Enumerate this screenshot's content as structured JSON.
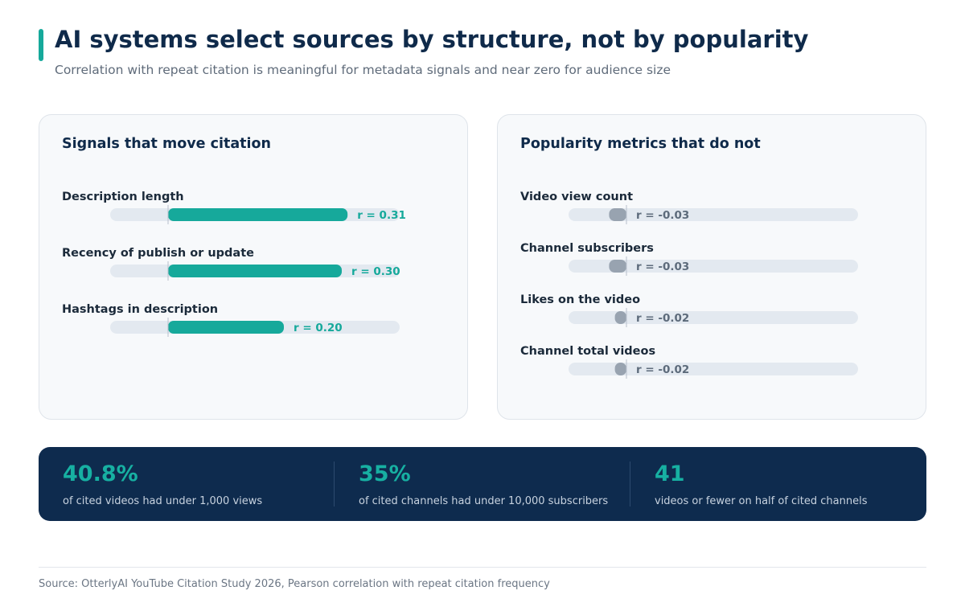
{
  "header": {
    "title": "AI systems select sources by structure, not by popularity",
    "subtitle": "Correlation with repeat citation is meaningful for metadata signals and near zero for audience size"
  },
  "colors": {
    "positive": "#16a99b",
    "negative": "#98a3b0",
    "track": "#e3e9f0",
    "navy": "#0e2b4e"
  },
  "chart_data": [
    {
      "type": "bar",
      "title": "Signals that move citation",
      "categories": [
        "Description length",
        "Recency of publish or update",
        "Hashtags in description"
      ],
      "values": [
        0.31,
        0.3,
        0.2
      ],
      "value_labels": [
        "r = 0.31",
        "r = 0.30",
        "r = 0.20"
      ],
      "xlim": [
        -0.1,
        0.4
      ],
      "orientation": "horizontal"
    },
    {
      "type": "bar",
      "title": "Popularity metrics that do not",
      "categories": [
        "Video view count",
        "Channel subscribers",
        "Likes on the video",
        "Channel total videos"
      ],
      "values": [
        -0.03,
        -0.03,
        -0.02,
        -0.02
      ],
      "value_labels": [
        "r = -0.03",
        "r = -0.03",
        "r = -0.02",
        "r = -0.02"
      ],
      "xlim": [
        -0.1,
        0.4
      ],
      "orientation": "horizontal"
    }
  ],
  "stats": [
    {
      "value": "40.8%",
      "label": "of cited videos had under 1,000 views"
    },
    {
      "value": "35%",
      "label": "of cited channels had under 10,000 subscribers"
    },
    {
      "value": "41",
      "label": "videos or fewer on half of cited channels"
    }
  ],
  "footer": {
    "source": "Source: OtterlyAI YouTube Citation Study 2026, Pearson correlation with repeat citation frequency"
  }
}
